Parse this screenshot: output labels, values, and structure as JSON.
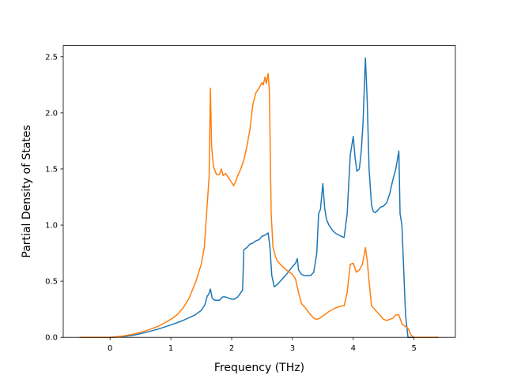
{
  "chart_data": {
    "type": "line",
    "title": "",
    "xlabel": "Frequency (THz)",
    "ylabel": "Partial Density of States",
    "xlim": [
      -0.77,
      5.68
    ],
    "ylim": [
      0,
      2.6
    ],
    "xticks": [
      0,
      1,
      2,
      3,
      4,
      5
    ],
    "xtick_labels": [
      "0",
      "1",
      "2",
      "3",
      "4",
      "5"
    ],
    "yticks": [
      0.0,
      0.5,
      1.0,
      1.5,
      2.0,
      2.5
    ],
    "ytick_labels": [
      "0.0",
      "0.5",
      "1.0",
      "1.5",
      "2.0",
      "2.5"
    ],
    "grid": false,
    "legend": "none",
    "series": [
      {
        "color": "#1f77b4",
        "x": [
          -0.5,
          0.0,
          0.2,
          0.4,
          0.6,
          0.8,
          1.0,
          1.2,
          1.4,
          1.5,
          1.56,
          1.6,
          1.62,
          1.65,
          1.68,
          1.72,
          1.8,
          1.85,
          1.9,
          2.0,
          2.05,
          2.1,
          2.18,
          2.2,
          2.25,
          2.3,
          2.35,
          2.4,
          2.45,
          2.5,
          2.55,
          2.6,
          2.63,
          2.66,
          2.7,
          2.75,
          2.8,
          2.9,
          3.0,
          3.05,
          3.08,
          3.1,
          3.15,
          3.2,
          3.25,
          3.3,
          3.35,
          3.4,
          3.43,
          3.46,
          3.5,
          3.53,
          3.56,
          3.6,
          3.65,
          3.7,
          3.8,
          3.85,
          3.9,
          3.95,
          4.0,
          4.03,
          4.06,
          4.1,
          4.13,
          4.16,
          4.2,
          4.23,
          4.26,
          4.3,
          4.33,
          4.36,
          4.4,
          4.45,
          4.5,
          4.55,
          4.6,
          4.65,
          4.7,
          4.75,
          4.77,
          4.8,
          4.83,
          4.86,
          4.9,
          4.93,
          5.0,
          5.2
        ],
        "y": [
          0.0,
          0.0,
          0.005,
          0.02,
          0.045,
          0.075,
          0.11,
          0.15,
          0.2,
          0.24,
          0.29,
          0.37,
          0.38,
          0.43,
          0.35,
          0.33,
          0.33,
          0.36,
          0.36,
          0.34,
          0.34,
          0.36,
          0.42,
          0.78,
          0.8,
          0.83,
          0.84,
          0.86,
          0.87,
          0.9,
          0.91,
          0.93,
          0.8,
          0.55,
          0.45,
          0.47,
          0.5,
          0.56,
          0.63,
          0.66,
          0.7,
          0.6,
          0.56,
          0.55,
          0.55,
          0.55,
          0.58,
          0.75,
          1.1,
          1.14,
          1.37,
          1.15,
          1.05,
          1.0,
          0.96,
          0.93,
          0.9,
          0.89,
          1.1,
          1.62,
          1.79,
          1.6,
          1.48,
          1.5,
          1.65,
          1.9,
          2.49,
          2.1,
          1.5,
          1.18,
          1.12,
          1.11,
          1.13,
          1.16,
          1.17,
          1.2,
          1.28,
          1.4,
          1.5,
          1.66,
          1.1,
          1.0,
          0.6,
          0.2,
          0.0,
          0.0,
          0.0,
          0.0
        ]
      },
      {
        "color": "#ff7f0e",
        "x": [
          -0.5,
          0.0,
          0.2,
          0.4,
          0.6,
          0.8,
          1.0,
          1.1,
          1.2,
          1.3,
          1.4,
          1.5,
          1.55,
          1.6,
          1.63,
          1.65,
          1.67,
          1.7,
          1.75,
          1.8,
          1.83,
          1.86,
          1.9,
          1.95,
          2.0,
          2.03,
          2.06,
          2.1,
          2.15,
          2.2,
          2.25,
          2.3,
          2.35,
          2.4,
          2.45,
          2.5,
          2.52,
          2.55,
          2.57,
          2.6,
          2.62,
          2.65,
          2.68,
          2.72,
          2.75,
          2.8,
          2.9,
          3.0,
          3.05,
          3.1,
          3.15,
          3.2,
          3.3,
          3.35,
          3.4,
          3.45,
          3.5,
          3.6,
          3.7,
          3.8,
          3.85,
          3.9,
          3.95,
          4.0,
          4.05,
          4.1,
          4.15,
          4.2,
          4.23,
          4.26,
          4.3,
          4.35,
          4.4,
          4.5,
          4.55,
          4.6,
          4.65,
          4.7,
          4.75,
          4.8,
          4.85,
          4.9,
          4.95,
          5.0,
          5.4
        ],
        "y": [
          0.0,
          0.0,
          0.01,
          0.03,
          0.06,
          0.1,
          0.16,
          0.2,
          0.26,
          0.35,
          0.48,
          0.65,
          0.8,
          1.2,
          1.44,
          2.22,
          1.7,
          1.52,
          1.45,
          1.45,
          1.5,
          1.44,
          1.46,
          1.42,
          1.38,
          1.35,
          1.38,
          1.44,
          1.5,
          1.58,
          1.7,
          1.85,
          2.08,
          2.18,
          2.22,
          2.27,
          2.25,
          2.32,
          2.26,
          2.35,
          2.2,
          1.1,
          0.8,
          0.72,
          0.68,
          0.65,
          0.6,
          0.56,
          0.52,
          0.4,
          0.3,
          0.27,
          0.2,
          0.17,
          0.16,
          0.17,
          0.19,
          0.23,
          0.26,
          0.28,
          0.28,
          0.4,
          0.65,
          0.66,
          0.58,
          0.6,
          0.65,
          0.8,
          0.68,
          0.5,
          0.28,
          0.25,
          0.22,
          0.16,
          0.15,
          0.16,
          0.17,
          0.2,
          0.2,
          0.12,
          0.1,
          0.08,
          0.02,
          0.0,
          0.0
        ]
      }
    ]
  }
}
